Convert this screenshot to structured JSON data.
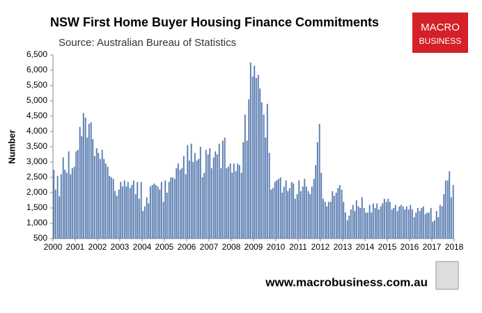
{
  "chart_data": {
    "type": "bar",
    "title": "NSW First Home Buyer Housing Finance Commitments",
    "subtitle": "Source: Australian Bureau of Statistics",
    "y_label": "Number",
    "color": "#5b7db1",
    "xlim": [
      2000,
      2018
    ],
    "xticks": [
      2000,
      2001,
      2002,
      2003,
      2004,
      2005,
      2006,
      2007,
      2008,
      2009,
      2010,
      2011,
      2012,
      2013,
      2014,
      2015,
      2016,
      2017,
      2018
    ],
    "ylim": [
      500,
      6500
    ],
    "yticks": [
      500,
      {
        "value": 1000,
        "label": "1,000"
      },
      {
        "value": 1500,
        "label": "1,500"
      },
      {
        "value": 2000,
        "label": "2,000"
      },
      {
        "value": 2500,
        "label": "2,500"
      },
      {
        "value": 3000,
        "label": "3,000"
      },
      {
        "value": 3500,
        "label": "3,500"
      },
      {
        "value": 4000,
        "label": "4,000"
      },
      {
        "value": 4500,
        "label": "4,500"
      },
      {
        "value": 5000,
        "label": "5,000"
      },
      {
        "value": 5500,
        "label": "5,500"
      },
      {
        "value": 6000,
        "label": "6,000"
      },
      {
        "value": 6500,
        "label": "6,500"
      }
    ],
    "x": [
      2000.0,
      2000.08,
      2000.17,
      2000.25,
      2000.33,
      2000.42,
      2000.5,
      2000.58,
      2000.67,
      2000.75,
      2000.83,
      2000.92,
      2001.0,
      2001.08,
      2001.17,
      2001.25,
      2001.33,
      2001.42,
      2001.5,
      2001.58,
      2001.67,
      2001.75,
      2001.83,
      2001.92,
      2002.0,
      2002.08,
      2002.17,
      2002.25,
      2002.33,
      2002.42,
      2002.5,
      2002.58,
      2002.67,
      2002.75,
      2002.83,
      2002.92,
      2003.0,
      2003.08,
      2003.17,
      2003.25,
      2003.33,
      2003.42,
      2003.5,
      2003.58,
      2003.67,
      2003.75,
      2003.83,
      2003.92,
      2004.0,
      2004.08,
      2004.17,
      2004.25,
      2004.33,
      2004.42,
      2004.5,
      2004.58,
      2004.67,
      2004.75,
      2004.83,
      2004.92,
      2005.0,
      2005.08,
      2005.17,
      2005.25,
      2005.33,
      2005.42,
      2005.5,
      2005.58,
      2005.67,
      2005.75,
      2005.83,
      2005.92,
      2006.0,
      2006.08,
      2006.17,
      2006.25,
      2006.33,
      2006.42,
      2006.5,
      2006.58,
      2006.67,
      2006.75,
      2006.83,
      2006.92,
      2007.0,
      2007.08,
      2007.17,
      2007.25,
      2007.33,
      2007.42,
      2007.5,
      2007.58,
      2007.67,
      2007.75,
      2007.83,
      2007.92,
      2008.0,
      2008.08,
      2008.17,
      2008.25,
      2008.33,
      2008.42,
      2008.5,
      2008.58,
      2008.67,
      2008.75,
      2008.83,
      2008.92,
      2009.0,
      2009.08,
      2009.17,
      2009.25,
      2009.33,
      2009.42,
      2009.5,
      2009.58,
      2009.67,
      2009.75,
      2009.83,
      2009.92,
      2010.0,
      2010.08,
      2010.17,
      2010.25,
      2010.33,
      2010.42,
      2010.5,
      2010.58,
      2010.67,
      2010.75,
      2010.83,
      2010.92,
      2011.0,
      2011.08,
      2011.17,
      2011.25,
      2011.33,
      2011.42,
      2011.5,
      2011.58,
      2011.67,
      2011.75,
      2011.83,
      2011.92,
      2012.0,
      2012.08,
      2012.17,
      2012.25,
      2012.33,
      2012.42,
      2012.5,
      2012.58,
      2012.67,
      2012.75,
      2012.83,
      2012.92,
      2013.0,
      2013.08,
      2013.17,
      2013.25,
      2013.33,
      2013.42,
      2013.5,
      2013.58,
      2013.67,
      2013.75,
      2013.83,
      2013.92,
      2014.0,
      2014.08,
      2014.17,
      2014.25,
      2014.33,
      2014.42,
      2014.5,
      2014.58,
      2014.67,
      2014.75,
      2014.83,
      2014.92,
      2015.0,
      2015.08,
      2015.17,
      2015.25,
      2015.33,
      2015.42,
      2015.5,
      2015.58,
      2015.67,
      2015.75,
      2015.83,
      2015.92,
      2016.0,
      2016.08,
      2016.17,
      2016.25,
      2016.33,
      2016.42,
      2016.5,
      2016.58,
      2016.67,
      2016.75,
      2016.83,
      2016.92,
      2017.0,
      2017.08,
      2017.17,
      2017.25,
      2017.33,
      2017.42,
      2017.5,
      2017.58,
      2017.67,
      2017.75,
      2017.83,
      2017.92
    ],
    "values": [
      2750,
      2100,
      2550,
      1880,
      2600,
      3150,
      2750,
      2650,
      3350,
      2600,
      2800,
      2850,
      3350,
      3400,
      4150,
      3850,
      4600,
      4450,
      3800,
      4250,
      4300,
      3750,
      3200,
      3450,
      3300,
      3100,
      3400,
      3100,
      2950,
      2850,
      2550,
      2500,
      2450,
      2050,
      1900,
      2100,
      2350,
      2200,
      2400,
      2200,
      2350,
      2150,
      2250,
      2400,
      1950,
      2350,
      1800,
      2350,
      1400,
      1550,
      1850,
      1650,
      2200,
      2250,
      2300,
      2250,
      2200,
      2100,
      2350,
      1700,
      2400,
      2000,
      2350,
      2500,
      2500,
      2450,
      2800,
      2950,
      2750,
      2800,
      3200,
      2600,
      3550,
      3050,
      3600,
      3000,
      3300,
      3050,
      3100,
      3500,
      2500,
      2650,
      3400,
      3250,
      3450,
      2800,
      3150,
      3350,
      3250,
      3600,
      2800,
      3700,
      3800,
      2800,
      2850,
      2950,
      2650,
      2950,
      2700,
      2950,
      2900,
      2650,
      3650,
      4550,
      3700,
      5050,
      6250,
      5800,
      6150,
      5750,
      5850,
      5400,
      4950,
      4550,
      3800,
      4900,
      3300,
      2100,
      2150,
      2350,
      2400,
      2450,
      2500,
      2000,
      2200,
      2400,
      2050,
      2150,
      2350,
      2300,
      1800,
      1950,
      2400,
      2050,
      2200,
      2450,
      2200,
      2050,
      1950,
      2200,
      2450,
      2900,
      3650,
      4250,
      2650,
      1800,
      1700,
      1550,
      1700,
      1700,
      2050,
      1900,
      2000,
      2150,
      2250,
      2100,
      1700,
      1350,
      1100,
      1250,
      1450,
      1600,
      1400,
      1750,
      1550,
      1500,
      1850,
      1500,
      1350,
      1350,
      1600,
      1350,
      1650,
      1500,
      1650,
      1450,
      1550,
      1650,
      1800,
      1700,
      1800,
      1700,
      1450,
      1500,
      1600,
      1400,
      1550,
      1600,
      1550,
      1450,
      1550,
      1450,
      1600,
      1450,
      1200,
      1350,
      1500,
      1400,
      1500,
      1550,
      1300,
      1350,
      1350,
      1500,
      1050,
      1100,
      1400,
      1200,
      1600,
      1550,
      1950,
      2400,
      2400,
      2700,
      1850,
      2250
    ]
  },
  "logo": {
    "line1": "MACRO",
    "line2": "BUSINESS"
  },
  "footer": "www.macrobusiness.com.au"
}
